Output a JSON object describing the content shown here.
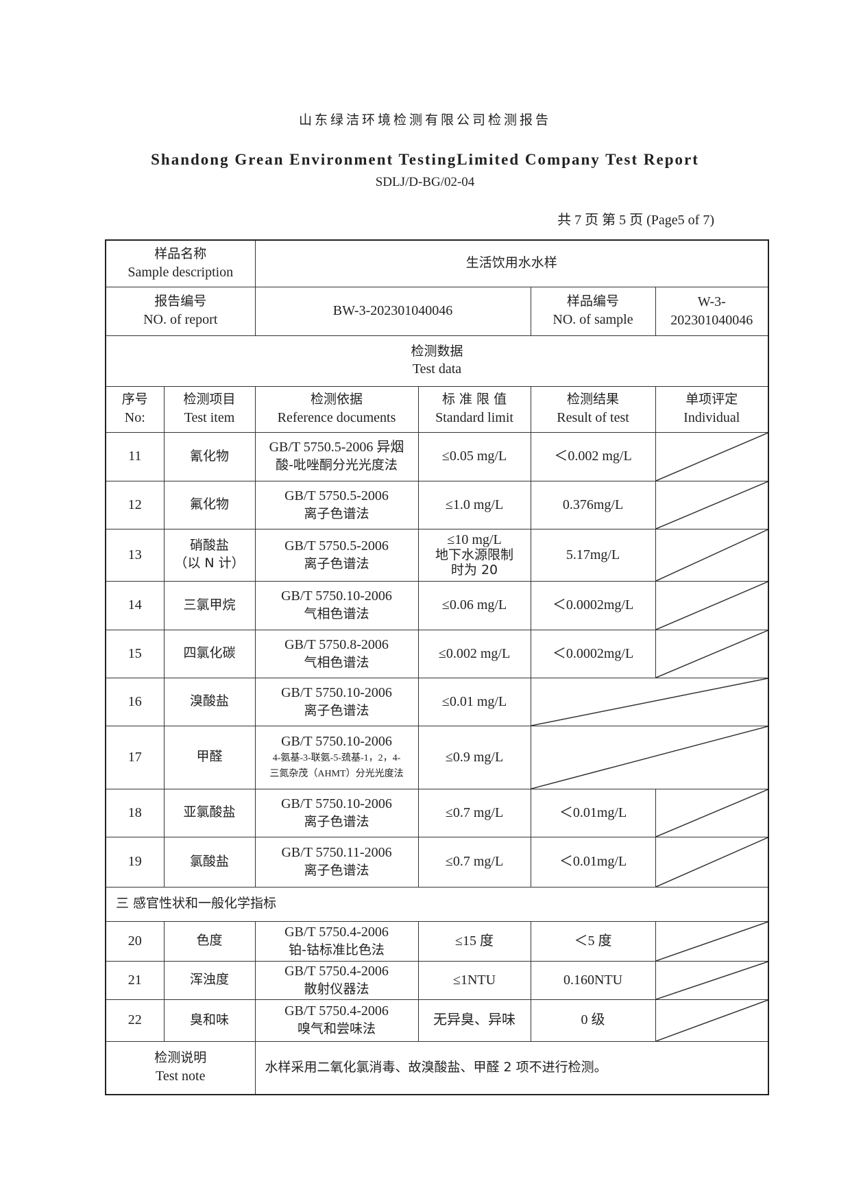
{
  "header": {
    "title_cn": "山东绿洁环境检测有限公司检测报告",
    "title_en": "Shandong Grean Environment TestingLimited Company Test Report",
    "doc_code": "SDLJ/D-BG/02-04",
    "page_info": "共 7 页  第 5 页  (Page5 of 7)"
  },
  "info": {
    "sample_desc_label_cn": "样品名称",
    "sample_desc_label_en": "Sample description",
    "sample_desc_value": "生活饮用水水样",
    "report_no_label_cn": "报告编号",
    "report_no_label_en": "NO. of report",
    "report_no_value": "BW-3-202301040046",
    "sample_no_label_cn": "样品编号",
    "sample_no_label_en": "NO. of sample",
    "sample_no_value": "W-3-202301040046",
    "test_data_cn": "检测数据",
    "test_data_en": "Test data"
  },
  "columns": [
    {
      "cn": "序号",
      "en": "No:"
    },
    {
      "cn": "检测项目",
      "en": "Test item"
    },
    {
      "cn": "检测依据",
      "en": "Reference documents"
    },
    {
      "cn": "标 准 限 值",
      "en": "Standard limit"
    },
    {
      "cn": "检测结果",
      "en": "Result of test"
    },
    {
      "cn": "单项评定",
      "en": "Individual"
    }
  ],
  "rows": [
    {
      "no": "11",
      "item": "氰化物",
      "ref1": "GB/T 5750.5-2006 异烟",
      "ref2": "酸-吡唑酮分光光度法",
      "limit": "≤0.05 mg/L",
      "result": "＜0.002 mg/L"
    },
    {
      "no": "12",
      "item": "氟化物",
      "ref1": "GB/T 5750.5-2006",
      "ref2": "离子色谱法",
      "limit": "≤1.0 mg/L",
      "result": "0.376mg/L"
    },
    {
      "no": "13",
      "item": "硝酸盐",
      "item2": "（以 N 计）",
      "ref1": "GB/T 5750.5-2006",
      "ref2": "离子色谱法",
      "limit": "≤10 mg/L",
      "limit2": "地下水源限制",
      "limit3": "时为 20",
      "result": "5.17mg/L"
    },
    {
      "no": "14",
      "item": "三氯甲烷",
      "ref1": "GB/T 5750.10-2006",
      "ref2": "气相色谱法",
      "limit": "≤0.06 mg/L",
      "result": "＜0.0002mg/L"
    },
    {
      "no": "15",
      "item": "四氯化碳",
      "ref1": "GB/T 5750.8-2006",
      "ref2": "气相色谱法",
      "limit": "≤0.002 mg/L",
      "result": "＜0.0002mg/L"
    },
    {
      "no": "16",
      "item": "溴酸盐",
      "ref1": "GB/T 5750.10-2006",
      "ref2": "离子色谱法",
      "limit": "≤0.01 mg/L"
    },
    {
      "no": "17",
      "item": "甲醛",
      "ref1": "GB/T 5750.10-2006",
      "ref2": "4-氨基-3-联氨-5-巯基-1，2，4-",
      "ref3": "三氮杂茂（AHMT）分光光度法",
      "limit": "≤0.9 mg/L"
    },
    {
      "no": "18",
      "item": "亚氯酸盐",
      "ref1": "GB/T 5750.10-2006",
      "ref2": "离子色谱法",
      "limit": "≤0.7 mg/L",
      "result": "＜0.01mg/L"
    },
    {
      "no": "19",
      "item": "氯酸盐",
      "ref1": "GB/T 5750.11-2006",
      "ref2": "离子色谱法",
      "limit": "≤0.7 mg/L",
      "result": "＜0.01mg/L"
    }
  ],
  "section3": "三  感官性状和一般化学指标",
  "rows2": [
    {
      "no": "20",
      "item": "色度",
      "ref1": "GB/T 5750.4-2006",
      "ref2": "铂-钴标准比色法",
      "limit": "≤15 度",
      "result": "＜5 度"
    },
    {
      "no": "21",
      "item": "浑浊度",
      "ref1": "GB/T 5750.4-2006",
      "ref2": "散射仪器法",
      "limit": "≤1NTU",
      "result": "0.160NTU"
    },
    {
      "no": "22",
      "item": "臭和味",
      "ref1": "GB/T 5750.4-2006",
      "ref2": "嗅气和尝味法",
      "limit": "无异臭、异味",
      "result": "0 级"
    }
  ],
  "note": {
    "label_cn": "检测说明",
    "label_en": "Test note",
    "text": "水样采用二氧化氯消毒、故溴酸盐、甲醛 2 项不进行检测。"
  }
}
